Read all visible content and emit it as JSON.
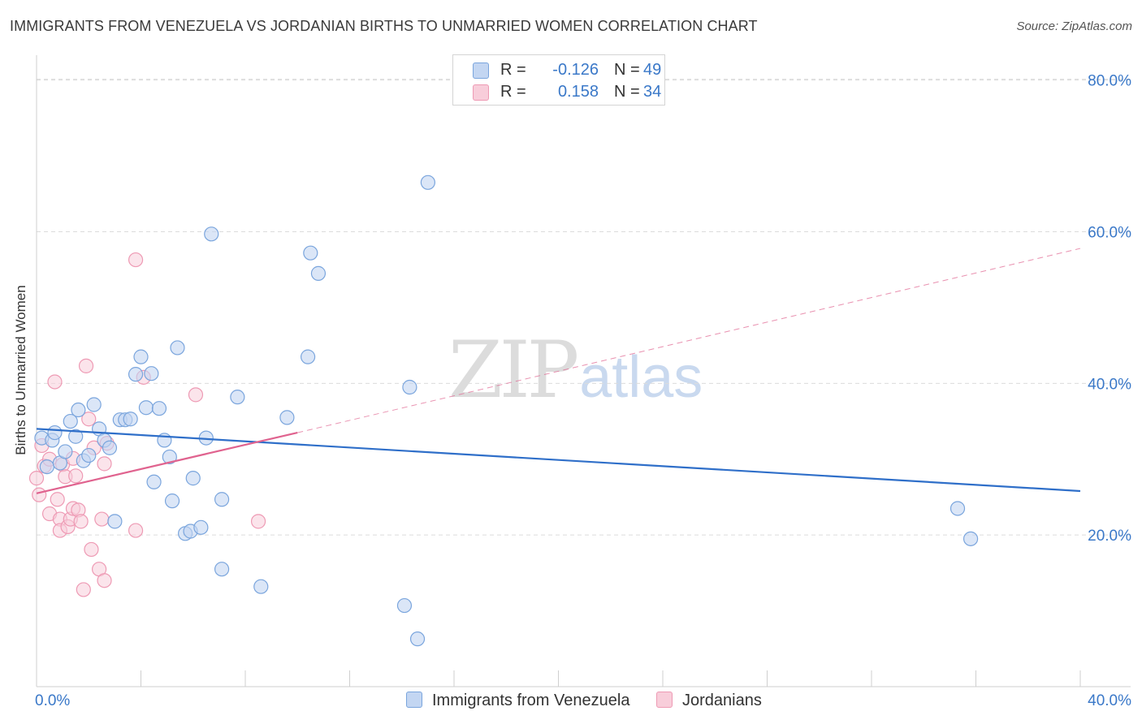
{
  "title": "IMMIGRANTS FROM VENEZUELA VS JORDANIAN BIRTHS TO UNMARRIED WOMEN CORRELATION CHART",
  "source": "Source: ZipAtlas.com",
  "watermark": {
    "zip": "ZIP",
    "atlas": "atlas"
  },
  "colors": {
    "blue_fill": "#c3d6f2",
    "blue_stroke": "#7aa5dd",
    "blue_line": "#2f6fc9",
    "pink_fill": "#f8cdda",
    "pink_stroke": "#ee9ab4",
    "pink_line": "#e0638f",
    "grid": "#dcdcdc",
    "tick_text": "#3a78c8"
  },
  "legend_top": {
    "rows": [
      {
        "r_label": "R =",
        "r_value": "-0.126",
        "n_label": "N =",
        "n_value": "49"
      },
      {
        "r_label": "R =",
        "r_value": "0.158",
        "n_label": "N =",
        "n_value": "34"
      }
    ]
  },
  "legend_bottom": {
    "items": [
      "Immigrants from Venezuela",
      "Jordanians"
    ]
  },
  "chart_data": {
    "type": "scatter",
    "title": "IMMIGRANTS FROM VENEZUELA VS JORDANIAN BIRTHS TO UNMARRIED WOMEN CORRELATION CHART",
    "xlabel": "",
    "ylabel": "Births to Unmarried Women",
    "xlim": [
      0,
      40
    ],
    "ylim": [
      0,
      82
    ],
    "x_tick_labels": [
      {
        "value": 0,
        "label": "0.0%"
      },
      {
        "value": 40,
        "label": "40.0%"
      }
    ],
    "y_tick_labels": [
      {
        "value": 20,
        "label": "20.0%"
      },
      {
        "value": 40,
        "label": "40.0%"
      },
      {
        "value": 60,
        "label": "60.0%"
      },
      {
        "value": 80,
        "label": "80.0%"
      }
    ],
    "grid": true,
    "legend_position": "top-center",
    "series": [
      {
        "name": "Immigrants from Venezuela",
        "color": "blue",
        "r": -0.126,
        "n": 49,
        "points": [
          [
            0.2,
            32.8
          ],
          [
            0.4,
            29.0
          ],
          [
            0.6,
            32.5
          ],
          [
            0.7,
            33.5
          ],
          [
            0.9,
            29.5
          ],
          [
            1.1,
            31.0
          ],
          [
            1.3,
            35.0
          ],
          [
            1.5,
            33.0
          ],
          [
            1.6,
            36.5
          ],
          [
            1.8,
            29.8
          ],
          [
            2.0,
            30.5
          ],
          [
            2.2,
            37.2
          ],
          [
            2.4,
            34.0
          ],
          [
            2.6,
            32.5
          ],
          [
            2.8,
            31.5
          ],
          [
            3.0,
            21.8
          ],
          [
            3.2,
            35.2
          ],
          [
            3.4,
            35.2
          ],
          [
            3.6,
            35.3
          ],
          [
            3.8,
            41.2
          ],
          [
            4.0,
            43.5
          ],
          [
            4.2,
            36.8
          ],
          [
            4.4,
            41.3
          ],
          [
            4.5,
            27.0
          ],
          [
            4.7,
            36.7
          ],
          [
            4.9,
            32.5
          ],
          [
            5.1,
            30.3
          ],
          [
            5.2,
            24.5
          ],
          [
            5.4,
            44.7
          ],
          [
            5.7,
            20.2
          ],
          [
            5.9,
            20.5
          ],
          [
            6.0,
            27.5
          ],
          [
            6.3,
            21.0
          ],
          [
            6.5,
            32.8
          ],
          [
            6.7,
            59.7
          ],
          [
            7.1,
            24.7
          ],
          [
            7.1,
            15.5
          ],
          [
            7.7,
            38.2
          ],
          [
            8.6,
            13.2
          ],
          [
            9.6,
            35.5
          ],
          [
            10.4,
            43.5
          ],
          [
            10.5,
            57.2
          ],
          [
            10.8,
            54.5
          ],
          [
            14.1,
            10.7
          ],
          [
            14.3,
            39.5
          ],
          [
            14.6,
            6.3
          ],
          [
            15.0,
            66.5
          ],
          [
            35.3,
            23.5
          ],
          [
            35.8,
            19.5
          ]
        ],
        "trend": {
          "x": [
            0.0,
            40.0
          ],
          "y": [
            34.0,
            25.8
          ],
          "dashed_extension": false
        }
      },
      {
        "name": "Jordanians",
        "color": "pink",
        "r": 0.158,
        "n": 34,
        "points": [
          [
            0.0,
            27.5
          ],
          [
            0.1,
            25.3
          ],
          [
            0.2,
            31.8
          ],
          [
            0.3,
            29.1
          ],
          [
            0.5,
            22.8
          ],
          [
            0.5,
            30.0
          ],
          [
            0.7,
            40.2
          ],
          [
            0.8,
            24.7
          ],
          [
            0.9,
            22.1
          ],
          [
            0.9,
            20.6
          ],
          [
            1.0,
            29.3
          ],
          [
            1.1,
            27.7
          ],
          [
            1.2,
            21.1
          ],
          [
            1.3,
            22.1
          ],
          [
            1.4,
            30.1
          ],
          [
            1.4,
            23.5
          ],
          [
            1.5,
            27.8
          ],
          [
            1.6,
            23.3
          ],
          [
            1.7,
            21.8
          ],
          [
            1.8,
            12.8
          ],
          [
            1.9,
            42.3
          ],
          [
            2.0,
            35.3
          ],
          [
            2.1,
            18.1
          ],
          [
            2.2,
            31.5
          ],
          [
            2.4,
            15.5
          ],
          [
            2.5,
            22.1
          ],
          [
            2.6,
            14.0
          ],
          [
            2.6,
            29.4
          ],
          [
            2.7,
            32.1
          ],
          [
            3.8,
            20.6
          ],
          [
            3.8,
            56.3
          ],
          [
            4.1,
            40.8
          ],
          [
            6.1,
            38.5
          ],
          [
            8.5,
            21.8
          ]
        ],
        "trend": {
          "x": [
            0.0,
            10.0
          ],
          "y": [
            25.5,
            33.5
          ],
          "extended_x": [
            0.0,
            40.0
          ],
          "extended_y": [
            25.5,
            57.8
          ],
          "dashed_extension": true
        }
      }
    ]
  }
}
